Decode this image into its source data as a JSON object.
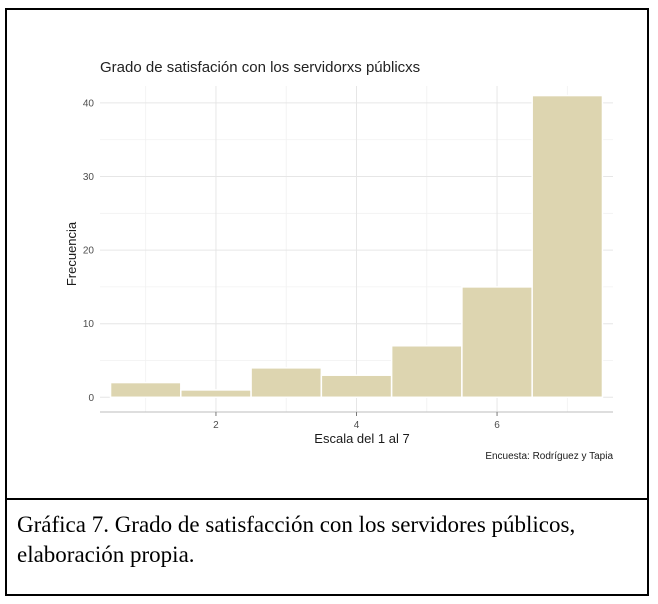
{
  "chart_data": {
    "type": "bar",
    "title": "Grado de satisfación con los servidorxs públicxs",
    "xlabel": "Escala del 1 al 7",
    "ylabel": "Frecuencia",
    "caption": "Encuesta: Rodríguez y Tapia",
    "categories": [
      1,
      2,
      3,
      4,
      5,
      6,
      7
    ],
    "values": [
      2,
      1,
      4,
      3,
      7,
      15,
      41
    ],
    "xlim": [
      0.35,
      7.65
    ],
    "ylim": [
      -2,
      42.3
    ],
    "xticks": [
      2,
      4,
      6
    ],
    "yticks": [
      0,
      10,
      20,
      30,
      40
    ],
    "bar_color": "#ddd5b0",
    "grid": true,
    "legend": "none"
  },
  "figure_caption": "Gráfica 7. Grado de satisfacción con los servidores públicos, elaboración propia."
}
